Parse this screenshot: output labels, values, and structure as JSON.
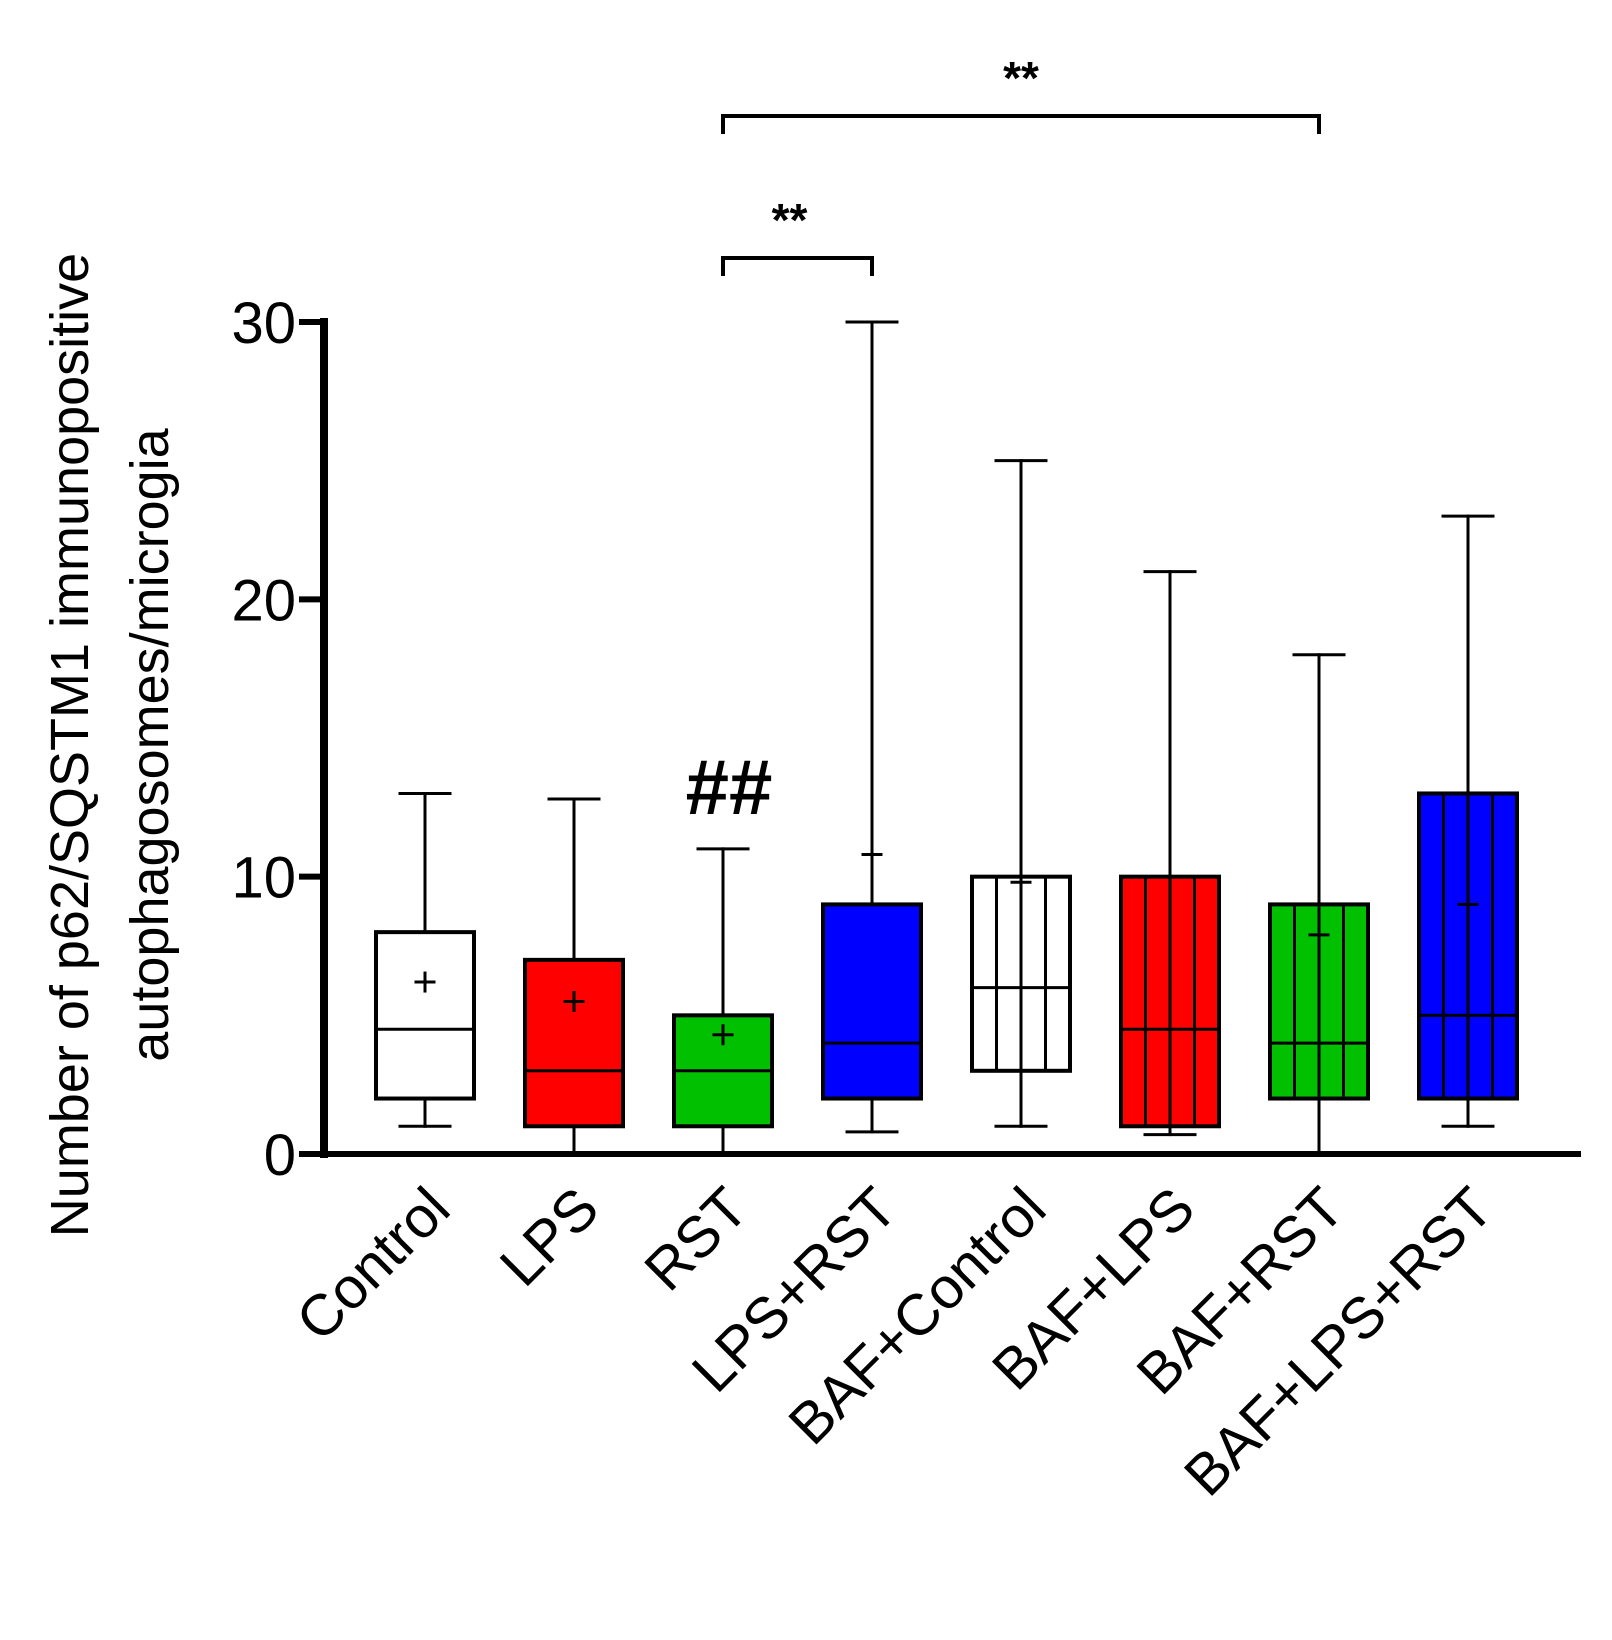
{
  "chart_data": {
    "type": "boxplot",
    "ylabel_line1": "Number of p62/SQSTM1 immunopositive",
    "ylabel_line2": "autophagosomes/microgia",
    "xlabel": "",
    "ylim": [
      0,
      30
    ],
    "yticks": [
      0,
      10,
      20,
      30
    ],
    "ytick_labels": [
      "0",
      "10",
      "20",
      "30"
    ],
    "grid": false,
    "categories": [
      "Control",
      "LPS",
      "RST",
      "LPS+RST",
      "BAF+Control",
      "BAF+LPS",
      "BAF+RST",
      "BAF+LPS+RST"
    ],
    "boxes": [
      {
        "name": "Control",
        "min": 1,
        "q1": 2,
        "median": 4.5,
        "q3": 8,
        "max": 13,
        "mean": 6.2,
        "fill": "#ffffff",
        "hatched": false
      },
      {
        "name": "LPS",
        "min": 0,
        "q1": 1,
        "median": 3,
        "q3": 7,
        "max": 12.8,
        "mean": 5.5,
        "fill": "#ff0000",
        "hatched": false
      },
      {
        "name": "RST",
        "min": 0,
        "q1": 1,
        "median": 3,
        "q3": 5,
        "max": 11,
        "mean": 4.3,
        "fill": "#00c000",
        "hatched": false
      },
      {
        "name": "LPS+RST",
        "min": 0.8,
        "q1": 2,
        "median": 4,
        "q3": 9,
        "max": 30,
        "mean": 10.8,
        "fill": "#0000ff",
        "hatched": false
      },
      {
        "name": "BAF+Control",
        "min": 1,
        "q1": 3,
        "median": 6,
        "q3": 10,
        "max": 25,
        "mean": 9.8,
        "fill": "#ffffff",
        "hatched": true
      },
      {
        "name": "BAF+LPS",
        "min": 0.7,
        "q1": 1,
        "median": 4.5,
        "q3": 10,
        "max": 21,
        "mean": 10,
        "fill": "#ff0000",
        "hatched": true
      },
      {
        "name": "BAF+RST",
        "min": 0,
        "q1": 2,
        "median": 4,
        "q3": 9,
        "max": 18,
        "mean": 7.9,
        "fill": "#00c000",
        "hatched": true
      },
      {
        "name": "BAF+LPS+RST",
        "min": 1,
        "q1": 2,
        "median": 5,
        "q3": 13,
        "max": 23,
        "mean": 9,
        "fill": "#0000ff",
        "hatched": true
      }
    ],
    "annotations": [
      {
        "type": "bracket",
        "from": "RST",
        "to": "LPS+RST",
        "label": "**"
      },
      {
        "type": "bracket",
        "from": "RST",
        "to": "BAF+RST",
        "label": "**"
      },
      {
        "type": "marker",
        "at": "RST",
        "label": "##"
      }
    ]
  }
}
